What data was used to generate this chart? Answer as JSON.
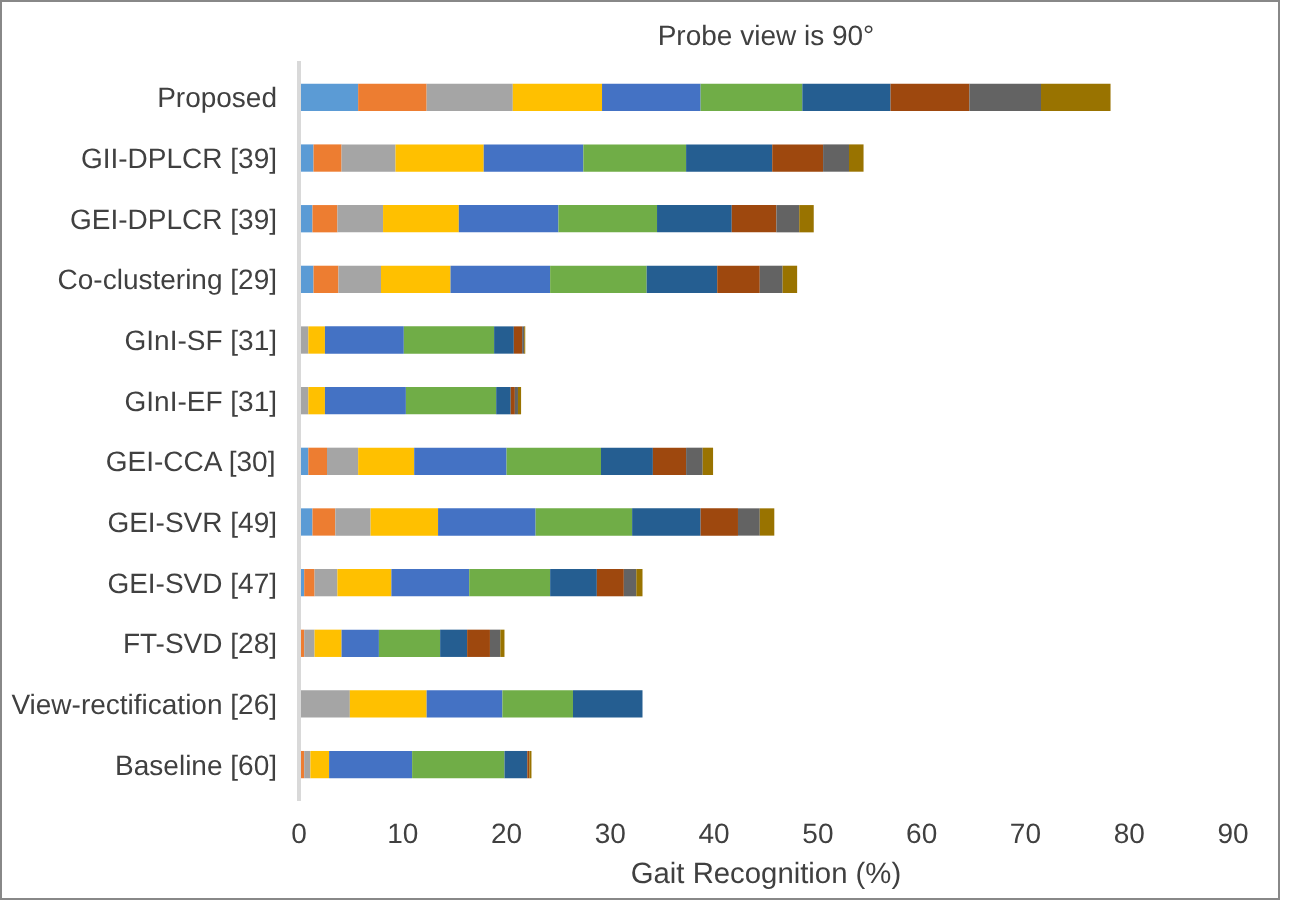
{
  "chart_data": {
    "type": "bar",
    "orientation": "horizontal",
    "stacked": true,
    "title": "Probe view is 90°",
    "xlabel": "Gait Recognition (%)",
    "categories": [
      "Proposed",
      "GII-DPLCR [39]",
      "GEI-DPLCR [39]",
      "Co-clustering [29]",
      "GInI-SF [31]",
      "GInI-EF [31]",
      "GEI-CCA [30]",
      "GEI-SVR [49]",
      "GEI-SVD [47]",
      "FT-SVD [28]",
      "View-rectification [26]",
      "Baseline [60]"
    ],
    "xlim": [
      0,
      90
    ],
    "xticks": [
      0,
      10,
      20,
      30,
      40,
      50,
      60,
      70,
      80,
      90
    ],
    "grid": false,
    "series": [
      {
        "color": "#5b9bd5",
        "values": [
          5.7,
          1.4,
          1.3,
          1.4,
          0,
          0,
          0.9,
          1.3,
          0.5,
          0,
          0,
          0
        ]
      },
      {
        "color": "#ed7d31",
        "values": [
          6.6,
          2.7,
          2.4,
          2.4,
          0,
          0,
          1.8,
          2.2,
          1.0,
          0.5,
          0,
          0.5
        ]
      },
      {
        "color": "#a5a5a5",
        "values": [
          8.3,
          5.2,
          4.4,
          4.1,
          0.9,
          0.9,
          3.0,
          3.4,
          2.2,
          1.0,
          4.9,
          0.6
        ]
      },
      {
        "color": "#ffc000",
        "values": [
          8.6,
          8.5,
          7.3,
          6.7,
          1.6,
          1.6,
          5.4,
          6.5,
          5.2,
          2.6,
          7.4,
          1.8
        ]
      },
      {
        "color": "#4472c4",
        "values": [
          9.5,
          9.6,
          9.6,
          9.6,
          7.6,
          7.8,
          8.9,
          9.4,
          7.5,
          3.6,
          7.3,
          8.0
        ]
      },
      {
        "color": "#70ad47",
        "values": [
          9.8,
          9.9,
          9.5,
          9.3,
          8.7,
          8.7,
          9.1,
          9.3,
          7.8,
          5.9,
          6.8,
          8.9
        ]
      },
      {
        "color": "#255e91",
        "values": [
          8.5,
          8.3,
          7.2,
          6.8,
          1.9,
          1.4,
          5.0,
          6.6,
          4.5,
          2.6,
          6.7,
          2.2
        ]
      },
      {
        "color": "#9e480e",
        "values": [
          7.6,
          4.9,
          4.3,
          4.1,
          0.8,
          0.4,
          3.2,
          3.6,
          2.6,
          2.2,
          0,
          0.2
        ]
      },
      {
        "color": "#636363",
        "values": [
          6.9,
          2.5,
          2.2,
          2.2,
          0.2,
          0.3,
          1.6,
          2.1,
          1.2,
          1.0,
          0,
          0
        ]
      },
      {
        "color": "#997300",
        "values": [
          6.7,
          1.4,
          1.4,
          1.4,
          0.1,
          0.3,
          1.0,
          1.4,
          0.6,
          0.4,
          0,
          0.2
        ]
      }
    ]
  }
}
